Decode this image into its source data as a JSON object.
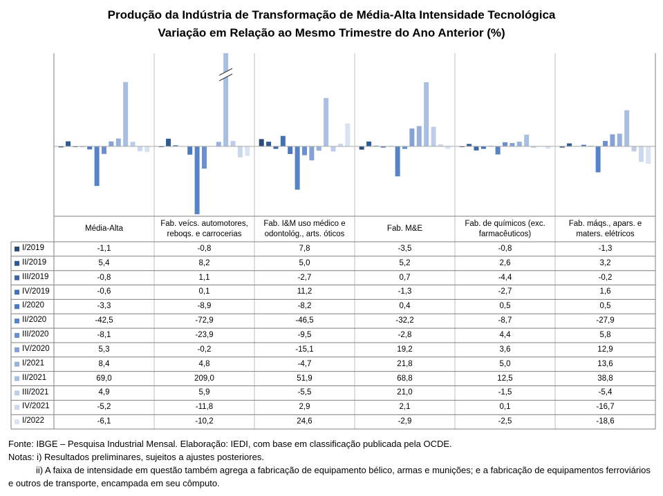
{
  "chart_data": {
    "type": "bar",
    "title": "Produção da Indústria de Transformação de Média-Alta Intensidade Tecnológica",
    "subtitle": "Variação em Relação ao Mesmo Trimestre do Ano Anterior (%)",
    "categories": [
      "Média-Alta",
      "Fab. veícs. automotores,\nreboqs. e carrocerias",
      "Fab. I&M uso médico e\nodontológ., arts. óticos",
      "Fab. M&E",
      "Fab. de químicos (exc.\nfarmacêuticos)",
      "Fab. máqs., apars. e\nmaters. elétricos"
    ],
    "ylim": [
      -75,
      100
    ],
    "series": [
      {
        "name": "I/2019",
        "color": "#2b4a78",
        "values": [
          -1.1,
          -0.8,
          7.8,
          -3.5,
          -0.8,
          -1.3
        ],
        "value_labels": [
          "-1,1",
          "-0,8",
          "7,8",
          "-3,5",
          "-0,8",
          "-1,3"
        ]
      },
      {
        "name": "II/2019",
        "color": "#2f5a92",
        "values": [
          5.4,
          8.2,
          5.0,
          5.2,
          2.6,
          3.2
        ],
        "value_labels": [
          "5,4",
          "8,2",
          "5,0",
          "5,2",
          "2,6",
          "3,2"
        ]
      },
      {
        "name": "III/2019",
        "color": "#3d64a3",
        "values": [
          -0.8,
          1.1,
          -2.7,
          0.7,
          -4.4,
          -0.2
        ],
        "value_labels": [
          "-0,8",
          "1,1",
          "-2,7",
          "0,7",
          "-4,4",
          "-0,2"
        ]
      },
      {
        "name": "IV/2019",
        "color": "#4470b4",
        "values": [
          -0.6,
          0.1,
          11.2,
          -1.3,
          -2.7,
          1.6
        ],
        "value_labels": [
          "-0,6",
          "0,1",
          "11,2",
          "-1,3",
          "-2,7",
          "1,6"
        ]
      },
      {
        "name": "I/2020",
        "color": "#4d79bf",
        "values": [
          -3.3,
          -8.9,
          -8.2,
          0.4,
          0.5,
          0.5
        ],
        "value_labels": [
          "-3,3",
          "-8,9",
          "-8,2",
          "0,4",
          "0,5",
          "0,5"
        ]
      },
      {
        "name": "II/2020",
        "color": "#5682c8",
        "values": [
          -42.5,
          -72.9,
          -46.5,
          -32.2,
          -8.7,
          -27.9
        ],
        "value_labels": [
          "-42,5",
          "-72,9",
          "-46,5",
          "-32,2",
          "-8,7",
          "-27,9"
        ]
      },
      {
        "name": "III/2020",
        "color": "#6b90cf",
        "values": [
          -8.1,
          -23.9,
          -9.5,
          -2.8,
          4.4,
          5.8
        ],
        "value_labels": [
          "-8,1",
          "-23,9",
          "-9,5",
          "-2,8",
          "4,4",
          "5,8"
        ]
      },
      {
        "name": "IV/2020",
        "color": "#84a2d6",
        "values": [
          5.3,
          -0.2,
          -15.1,
          19.2,
          3.6,
          12.9
        ],
        "value_labels": [
          "5,3",
          "-0,2",
          "-15,1",
          "19,2",
          "3,6",
          "12,9"
        ]
      },
      {
        "name": "I/2021",
        "color": "#98b1dc",
        "values": [
          8.4,
          4.8,
          -4.7,
          21.8,
          5.0,
          13.6
        ],
        "value_labels": [
          "8,4",
          "4,8",
          "-4,7",
          "21,8",
          "5,0",
          "13,6"
        ]
      },
      {
        "name": "II/2021",
        "color": "#a9bfe2",
        "values": [
          69.0,
          209.0,
          51.9,
          68.8,
          12.5,
          38.8
        ],
        "value_labels": [
          "69,0",
          "209,0",
          "51,9",
          "68,8",
          "12,5",
          "38,8"
        ]
      },
      {
        "name": "III/2021",
        "color": "#bccde8",
        "values": [
          4.9,
          5.9,
          -5.5,
          21.0,
          -1.5,
          -5.4
        ],
        "value_labels": [
          "4,9",
          "5,9",
          "-5,5",
          "21,0",
          "-1,5",
          "-5,4"
        ]
      },
      {
        "name": "IV/2021",
        "color": "#cad7ed",
        "values": [
          -5.2,
          -11.8,
          2.9,
          2.1,
          0.1,
          -16.7
        ],
        "value_labels": [
          "-5,2",
          "-11,8",
          "2,9",
          "2,1",
          "0,1",
          "-16,7"
        ]
      },
      {
        "name": "I/2022",
        "color": "#d9e2f2",
        "values": [
          -6.1,
          -10.2,
          24.6,
          -2.9,
          -2.5,
          -18.6
        ],
        "value_labels": [
          "-6,1",
          "-10,2",
          "24,6",
          "-2,9",
          "-2,5",
          "-18,6"
        ]
      }
    ],
    "source": "Fonte: IBGE – Pesquisa Industrial Mensal. Elaboração: IEDI, com base em classificação publicada pela OCDE.",
    "notes": [
      "Notas: i) Resultados preliminares, sujeitos a ajustes posteriores.",
      "ii) A faixa de intensidade em questão também agrega a fabricação de equipamento bélico, armas e munições; e a fabricação de equipamentos ferroviários e outros de transporte, encampada em seu cômputo."
    ]
  }
}
